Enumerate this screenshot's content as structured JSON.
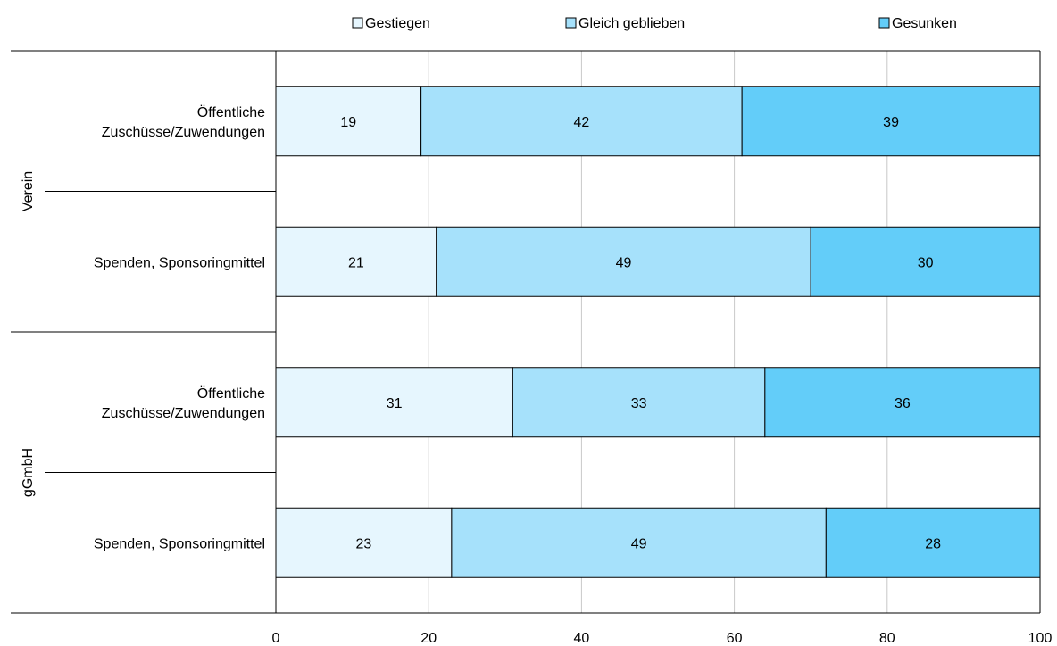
{
  "chart_data": {
    "type": "bar",
    "orientation": "horizontal",
    "stacked": true,
    "groups": [
      {
        "name": "Verein",
        "categories": [
          "Öffentliche Zuschüsse/Zuwendungen",
          "Spenden, Sponsoringmittel"
        ]
      },
      {
        "name": "gGmbH",
        "categories": [
          "Öffentliche Zuschüsse/Zuwendungen",
          "Spenden, Sponsoringmittel"
        ]
      }
    ],
    "categories": [
      "Verein – Öffentliche Zuschüsse/Zuwendungen",
      "Verein – Spenden, Sponsoringmittel",
      "gGmbH – Öffentliche Zuschüsse/Zuwendungen",
      "gGmbH – Spenden, Sponsoringmittel"
    ],
    "category_labels": [
      [
        "Öffentliche",
        "Zuschüsse/Zuwendungen"
      ],
      [
        "Spenden, Sponsoringmittel"
      ],
      [
        "Öffentliche",
        "Zuschüsse/Zuwendungen"
      ],
      [
        "Spenden, Sponsoringmittel"
      ]
    ],
    "series": [
      {
        "name": "Gestiegen",
        "color": "#e6f6fe",
        "values": [
          19,
          21,
          31,
          23
        ]
      },
      {
        "name": "Gleich geblieben",
        "color": "#a6e1fb",
        "values": [
          42,
          49,
          33,
          49
        ]
      },
      {
        "name": "Gesunken",
        "color": "#63cdf9",
        "values": [
          39,
          30,
          36,
          28
        ]
      }
    ],
    "xlim": [
      0,
      100
    ],
    "xticks": [
      0,
      20,
      40,
      60,
      80,
      100
    ],
    "grid": true,
    "legend_position": "top"
  }
}
